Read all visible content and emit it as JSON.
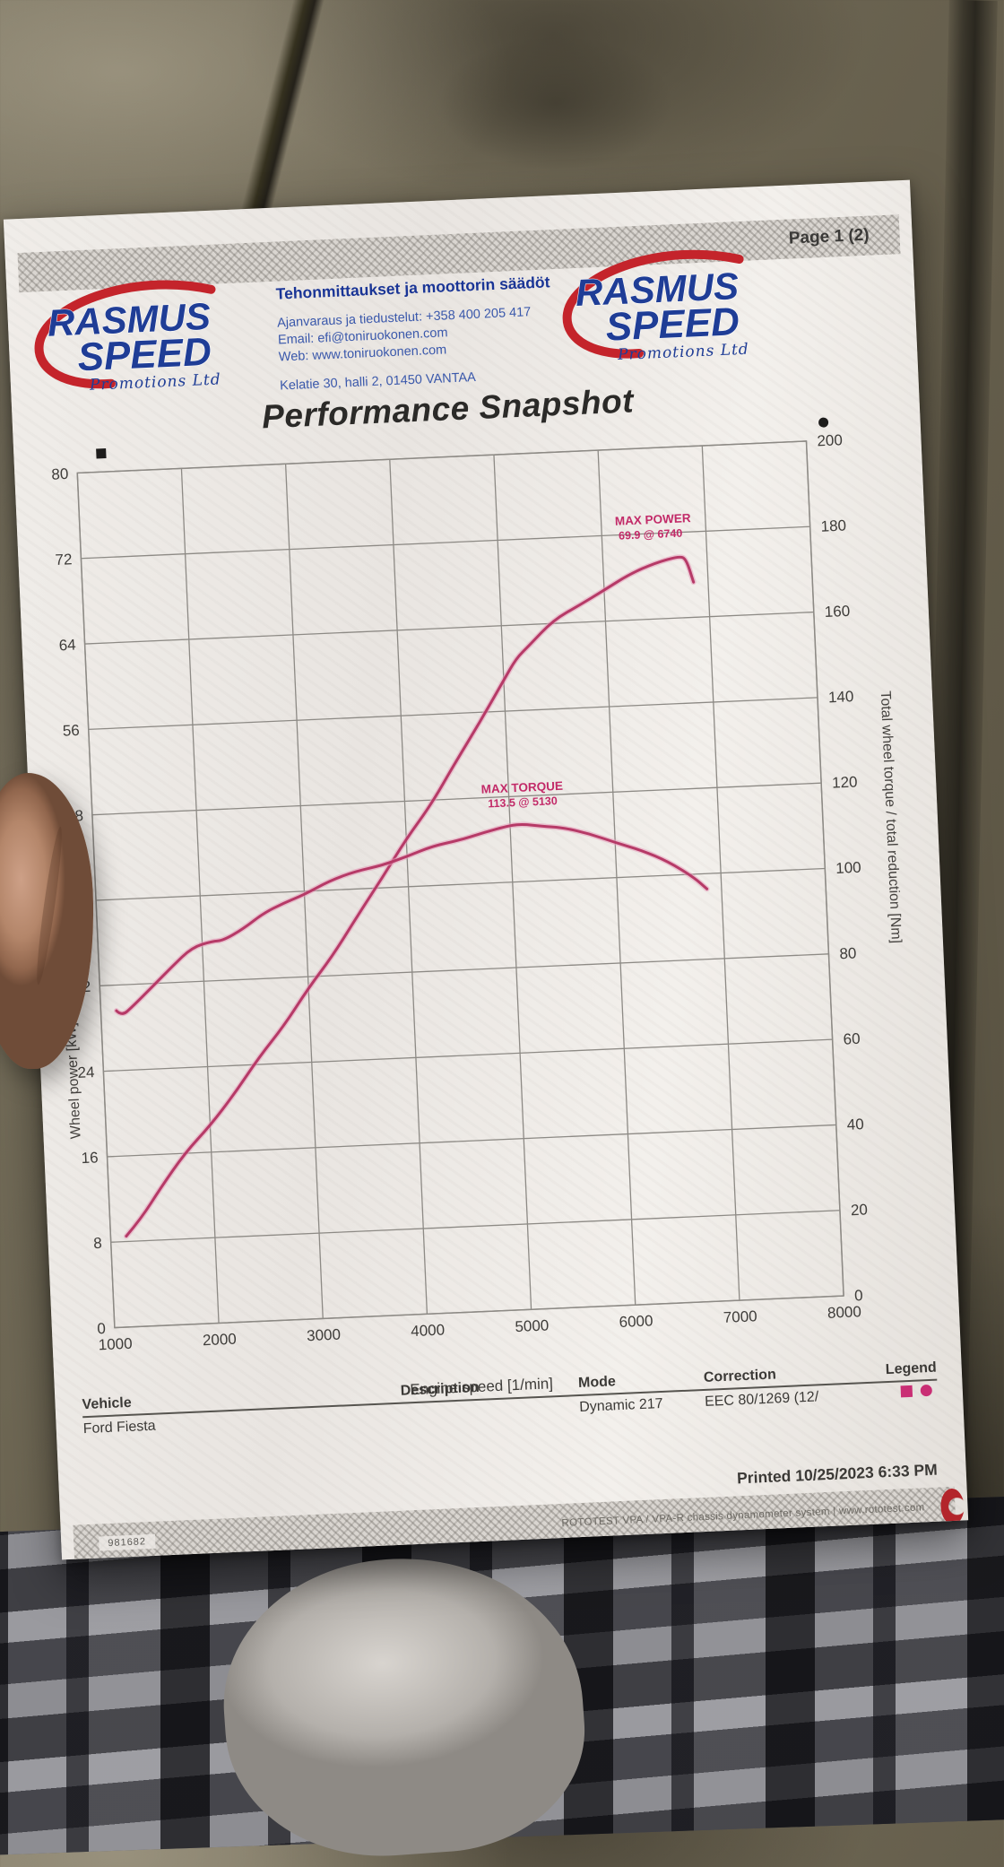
{
  "page_label": "Page 1 (2)",
  "header": {
    "brand": {
      "name_top": "RASMUS",
      "name_bottom": "SPEED",
      "tagline": "Promotions Ltd"
    },
    "services_title": "Tehonmittaukset ja moottorin säädöt",
    "contact_lines": [
      "Ajanvaraus ja tiedustelut: +358 400 205 417",
      "Email: efi@toniruokonen.com",
      "Web: www.toniruokonen.com"
    ],
    "address": "Kelatie 30, halli 2, 01450 VANTAA"
  },
  "title": "Performance Snapshot",
  "chart_data": {
    "type": "line",
    "title": "Performance Snapshot",
    "x_label": "Engine speed [1/min]",
    "y_left_label": "Wheel power [kW]",
    "y_right_label": "Total wheel torque / total reduction [Nm]",
    "x_range": [
      1000,
      8000
    ],
    "x_tick_step": 1000,
    "y_left_range": [
      0,
      80
    ],
    "y_left_tick_step": 8,
    "y_right_range": [
      0,
      200
    ],
    "y_right_tick_step": 20,
    "grid": true,
    "legend_markers": {
      "left_axis": "square",
      "right_axis": "circle"
    },
    "series": [
      {
        "name": "Wheel power",
        "axis": "left",
        "color": "#b63a67",
        "x": [
          1150,
          1300,
          1500,
          1750,
          2000,
          2250,
          2500,
          2750,
          3000,
          3250,
          3500,
          3750,
          4000,
          4250,
          4500,
          4750,
          5000,
          5130,
          5250,
          5500,
          5750,
          6000,
          6250,
          6500,
          6740,
          6800,
          6860
        ],
        "y": [
          8.5,
          10.2,
          12.8,
          16.0,
          18.6,
          21.4,
          24.6,
          27.6,
          31.0,
          33.8,
          37.5,
          41.0,
          44.4,
          47.5,
          51.5,
          55.0,
          58.8,
          61.0,
          62.0,
          64.2,
          65.6,
          67.0,
          68.2,
          69.2,
          69.9,
          69.4,
          67.2
        ]
      },
      {
        "name": "Wheel torque",
        "axis": "right",
        "color": "#b63a67",
        "x": [
          1150,
          1200,
          1300,
          1500,
          1700,
          1900,
          2100,
          2200,
          2400,
          2600,
          2800,
          3000,
          3250,
          3500,
          3750,
          4000,
          4250,
          4500,
          4750,
          5000,
          5130,
          5300,
          5500,
          5750,
          6000,
          6250,
          6500,
          6740,
          6860
        ],
        "y": [
          74,
          73,
          74.5,
          79,
          84,
          88,
          89,
          89.5,
          92,
          95,
          97.5,
          99.5,
          102,
          104,
          105.5,
          107,
          109,
          110.5,
          112,
          113,
          113.5,
          113,
          112,
          110.5,
          108.5,
          106,
          103,
          99.5,
          96.5
        ]
      }
    ],
    "annotations": [
      {
        "label": "MAX POWER",
        "value": "69.9 @ 6740",
        "x": 6740,
        "y": 69.9,
        "axis": "left"
      },
      {
        "label": "MAX TORQUE",
        "value": "113.5 @ 5130",
        "x": 5130,
        "y": 113.5,
        "axis": "right"
      }
    ]
  },
  "info_table": {
    "headers": {
      "vehicle": "Vehicle",
      "description": "Description",
      "mode": "Mode",
      "correction": "Correction",
      "legend": "Legend"
    },
    "row": {
      "vehicle": "Ford Fiesta",
      "description": "",
      "mode": "Dynamic 217",
      "correction": "EEC 80/1269 (12/",
      "legend_icons": [
        "square",
        "circle"
      ]
    }
  },
  "footer": {
    "printed": "Printed 10/25/2023 6:33 PM",
    "serial": "981682",
    "system_line": "ROTOTEST VPA / VPA-R chassis dynamometer system | www.rototest.com"
  },
  "colors": {
    "curve": "#b63a67",
    "curve_halo": "#e59cba",
    "annotation": "#c22a68",
    "logo_blue": "#1f3d96",
    "logo_red": "#c4242b",
    "legend_pink": "#c92e74",
    "grid": "#8d8a85"
  }
}
